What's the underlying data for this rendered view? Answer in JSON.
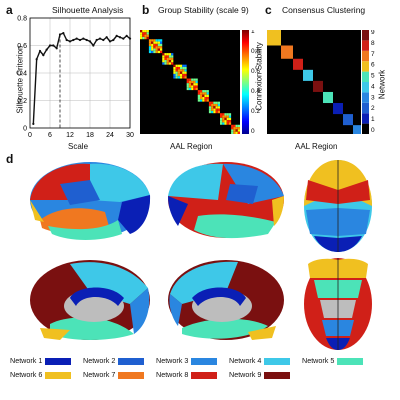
{
  "panel_a": {
    "letter": "a",
    "chart_data": {
      "type": "line",
      "title": "Silhouette Analysis",
      "xlabel": "Scale",
      "ylabel": "Silhouette Criterion",
      "xlim": [
        0,
        30
      ],
      "ylim": [
        0,
        0.8
      ],
      "xticks": [
        "0",
        "6",
        "12",
        "18",
        "24",
        "30"
      ],
      "yticks": [
        "0",
        "0.2",
        "0.4",
        "0.6",
        "0.8"
      ],
      "grid": true,
      "marker_line_x": 9,
      "x": [
        1,
        2,
        3,
        4,
        5,
        6,
        7,
        8,
        9,
        10,
        11,
        12,
        13,
        14,
        15,
        16,
        17,
        18,
        19,
        20,
        21,
        22,
        23,
        24,
        25,
        26,
        27,
        28,
        29,
        30
      ],
      "values": [
        0.03,
        0.5,
        0.56,
        0.53,
        0.57,
        0.6,
        0.6,
        0.58,
        0.68,
        0.69,
        0.64,
        0.63,
        0.64,
        0.65,
        0.64,
        0.65,
        0.64,
        0.63,
        0.6,
        0.64,
        0.65,
        0.64,
        0.66,
        0.63,
        0.64,
        0.67,
        0.66,
        0.65,
        0.67,
        0.65
      ]
    }
  },
  "panel_b": {
    "letter": "b",
    "title": "Group Stability (scale 9)",
    "xlabel": "AAL Region",
    "ylabel": "Connexion Stability",
    "colorbar_ticks": [
      "1",
      "0.8",
      "0.6",
      "0.4",
      "0.2",
      "0"
    ]
  },
  "panel_c": {
    "letter": "c",
    "title": "Consensus Clustering",
    "xlabel": "AAL Region",
    "ylabel": "Network",
    "colorbar_ticks": [
      "9",
      "8",
      "7",
      "6",
      "5",
      "4",
      "3",
      "2",
      "1",
      "0"
    ]
  },
  "panel_d": {
    "letter": "d",
    "legend": [
      {
        "label": "Network 1",
        "color": "#0a1fb5"
      },
      {
        "label": "Network 2",
        "color": "#1f5fd0"
      },
      {
        "label": "Network 3",
        "color": "#2a86e0"
      },
      {
        "label": "Network 4",
        "color": "#3ec8e8"
      },
      {
        "label": "Network 5",
        "color": "#4ce3b8"
      },
      {
        "label": "Network 6",
        "color": "#f0c020"
      },
      {
        "label": "Network 7",
        "color": "#f07820"
      },
      {
        "label": "Network 8",
        "color": "#d02018"
      },
      {
        "label": "Network 9",
        "color": "#7a1010"
      }
    ]
  }
}
